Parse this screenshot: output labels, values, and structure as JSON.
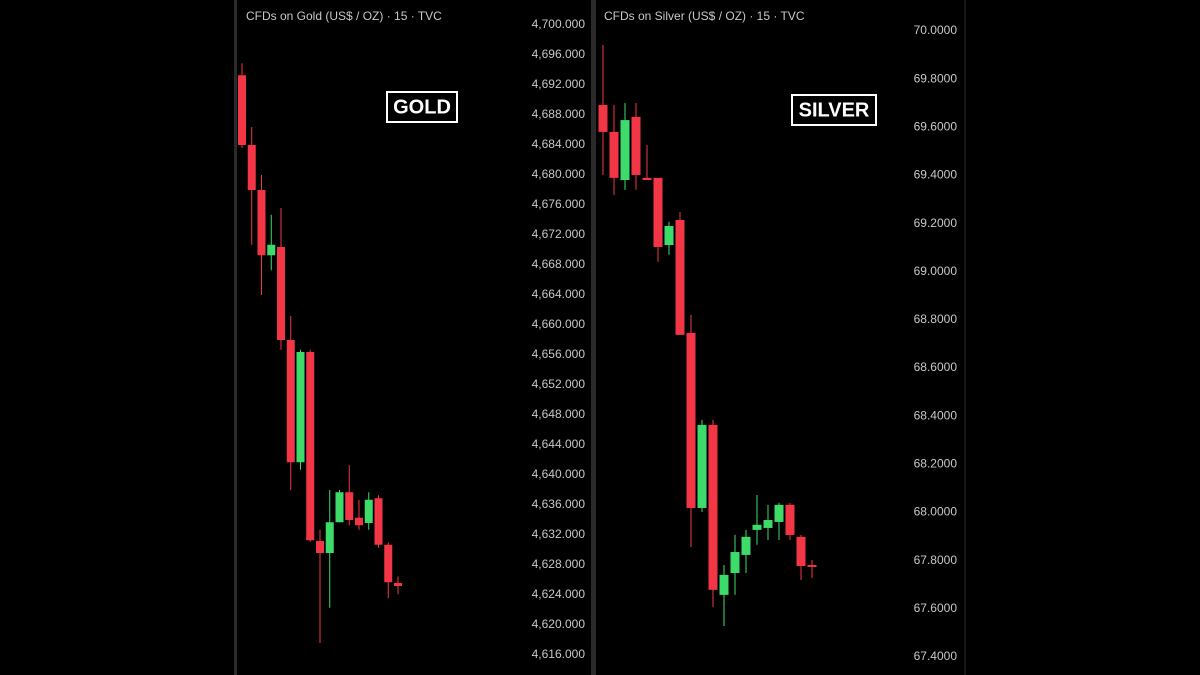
{
  "chart_data": [
    {
      "type": "candlestick",
      "title": "CFDs on Gold (US$ / OZ) · 15 · TVC",
      "label": "GOLD",
      "up_color": "#3ddc6a",
      "down_color": "#f23645",
      "open": [
        4693.3,
        4684.0,
        4678.0,
        4669.3,
        4670.4,
        4658.0,
        4641.7,
        4656.4,
        4631.2,
        4629.6,
        4633.7,
        4637.7,
        4634.3,
        4633.6,
        4636.9,
        4630.7,
        4625.6
      ],
      "high": [
        4694.9,
        4686.4,
        4680.0,
        4674.7,
        4675.6,
        4661.2,
        4656.7,
        4656.7,
        4632.7,
        4638.0,
        4638.0,
        4641.3,
        4636.7,
        4637.7,
        4637.3,
        4631.0,
        4626.5
      ],
      "low": [
        4683.6,
        4670.7,
        4664.0,
        4667.3,
        4656.7,
        4638.0,
        4640.7,
        4631.1,
        4617.6,
        4622.3,
        4633.7,
        4633.3,
        4632.7,
        4632.7,
        4630.3,
        4623.6,
        4624.1
      ],
      "close": [
        4684.0,
        4678.0,
        4669.3,
        4670.7,
        4658.0,
        4641.7,
        4656.4,
        4631.3,
        4629.6,
        4633.7,
        4637.7,
        4634.0,
        4633.3,
        4636.7,
        4630.7,
        4625.7,
        4625.2
      ],
      "ylim": [
        4616,
        4700
      ],
      "yticks": [
        {
          "value": 4700,
          "label": "4,700.000"
        },
        {
          "value": 4696,
          "label": "4,696.000"
        },
        {
          "value": 4692,
          "label": "4,692.000"
        },
        {
          "value": 4688,
          "label": "4,688.000"
        },
        {
          "value": 4684,
          "label": "4,684.000"
        },
        {
          "value": 4680,
          "label": "4,680.000"
        },
        {
          "value": 4676,
          "label": "4,676.000"
        },
        {
          "value": 4672,
          "label": "4,672.000"
        },
        {
          "value": 4668,
          "label": "4,668.000"
        },
        {
          "value": 4664,
          "label": "4,664.000"
        },
        {
          "value": 4660,
          "label": "4,660.000"
        },
        {
          "value": 4656,
          "label": "4,656.000"
        },
        {
          "value": 4652,
          "label": "4,652.000"
        },
        {
          "value": 4648,
          "label": "4,648.000"
        },
        {
          "value": 4644,
          "label": "4,644.000"
        },
        {
          "value": 4640,
          "label": "4,640.000"
        },
        {
          "value": 4636,
          "label": "4,636.000"
        },
        {
          "value": 4632,
          "label": "4,632.000"
        },
        {
          "value": 4628,
          "label": "4,628.000"
        },
        {
          "value": 4624,
          "label": "4,624.000"
        },
        {
          "value": 4620,
          "label": "4,620.000"
        },
        {
          "value": 4616,
          "label": "4,616.000"
        }
      ]
    },
    {
      "type": "candlestick",
      "title": "CFDs on Silver (US$ / OZ) · 15 · TVC",
      "label": "SILVER",
      "up_color": "#3ddc6a",
      "down_color": "#f23645",
      "open": [
        69.693,
        69.581,
        69.381,
        69.643,
        69.39,
        69.39,
        69.111,
        69.215,
        68.746,
        68.019,
        68.364,
        67.658,
        67.749,
        67.824,
        67.928,
        67.936,
        67.961,
        68.032,
        67.899,
        67.782
      ],
      "high": [
        69.942,
        69.693,
        69.701,
        69.701,
        69.527,
        69.39,
        69.207,
        69.248,
        68.821,
        68.385,
        68.385,
        67.782,
        67.907,
        67.928,
        68.073,
        68.032,
        68.04,
        68.04,
        67.907,
        67.803
      ],
      "low": [
        69.402,
        69.319,
        69.34,
        69.34,
        69.381,
        69.041,
        69.07,
        68.738,
        67.857,
        68.002,
        67.608,
        67.529,
        67.658,
        67.749,
        67.866,
        67.886,
        67.886,
        67.886,
        67.72,
        67.728
      ],
      "close": [
        69.581,
        69.39,
        69.63,
        69.402,
        69.381,
        69.103,
        69.19,
        68.738,
        68.019,
        68.364,
        67.679,
        67.741,
        67.836,
        67.899,
        67.949,
        67.969,
        68.032,
        67.907,
        67.778,
        67.774
      ],
      "ylim": [
        67.4,
        70
      ],
      "yticks": [
        {
          "value": 70,
          "label": "70.0000"
        },
        {
          "value": 69.8,
          "label": "69.8000"
        },
        {
          "value": 69.6,
          "label": "69.6000"
        },
        {
          "value": 69.4,
          "label": "69.4000"
        },
        {
          "value": 69.2,
          "label": "69.2000"
        },
        {
          "value": 69,
          "label": "69.0000"
        },
        {
          "value": 68.8,
          "label": "68.8000"
        },
        {
          "value": 68.6,
          "label": "68.6000"
        },
        {
          "value": 68.4,
          "label": "68.4000"
        },
        {
          "value": 68.2,
          "label": "68.2000"
        },
        {
          "value": 68,
          "label": "68.0000"
        },
        {
          "value": 67.8,
          "label": "67.8000"
        },
        {
          "value": 67.6,
          "label": "67.6000"
        },
        {
          "value": 67.4,
          "label": "67.4000"
        }
      ]
    }
  ]
}
